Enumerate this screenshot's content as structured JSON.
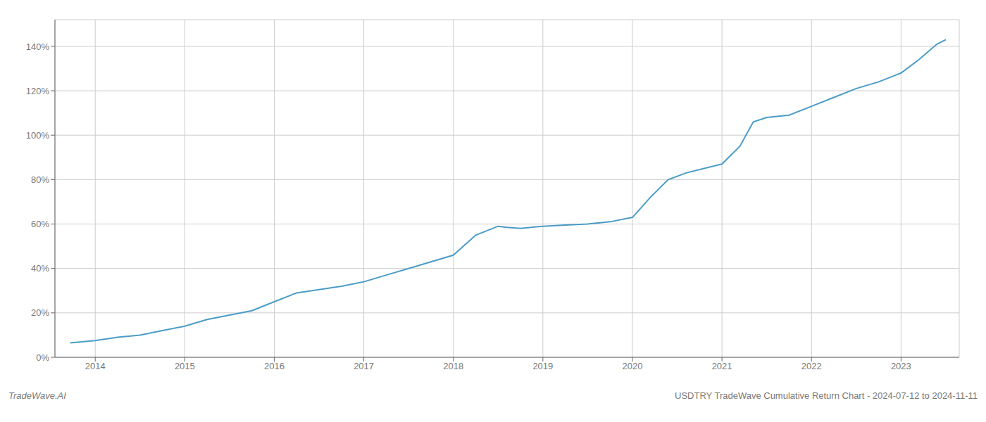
{
  "chart_data": {
    "type": "line",
    "title": "USDTRY TradeWave Cumulative Return Chart - 2024-07-12 to 2024-11-11",
    "annotations": [
      "TradeWave.AI"
    ],
    "color": "#4a9cc7",
    "grid": true,
    "x": [
      2013.72,
      2014,
      2014.25,
      2014.5,
      2014.75,
      2015,
      2015.25,
      2015.5,
      2015.75,
      2016,
      2016.25,
      2016.5,
      2016.75,
      2017,
      2017.25,
      2017.5,
      2017.75,
      2018,
      2018.25,
      2018.5,
      2018.6,
      2018.75,
      2019,
      2019.25,
      2019.5,
      2019.75,
      2020,
      2020.2,
      2020.4,
      2020.6,
      2020.8,
      2021,
      2021.2,
      2021.35,
      2021.5,
      2021.75,
      2022,
      2022.25,
      2022.5,
      2022.75,
      2023,
      2023.2,
      2023.4,
      2023.5
    ],
    "values": [
      6.5,
      7.5,
      9,
      10,
      12,
      14,
      17,
      19,
      21,
      25,
      29,
      30.5,
      32,
      34,
      37,
      40,
      43,
      46,
      55,
      59,
      58.5,
      58,
      59,
      59.5,
      60,
      61,
      63,
      72,
      80,
      83,
      85,
      87,
      95,
      106,
      108,
      109,
      113,
      117,
      121,
      124,
      128,
      134,
      141,
      143
    ],
    "xlim": [
      2013.55,
      2023.65
    ],
    "xticks": [
      2014,
      2015,
      2016,
      2017,
      2018,
      2019,
      2020,
      2021,
      2022,
      2023
    ],
    "ylim": [
      0,
      152
    ],
    "yticks": [
      {
        "value": 0,
        "label": "0%"
      },
      {
        "value": 20,
        "label": "20%"
      },
      {
        "value": 40,
        "label": "40%"
      },
      {
        "value": 60,
        "label": "60%"
      },
      {
        "value": 80,
        "label": "80%"
      },
      {
        "value": 100,
        "label": "100%"
      },
      {
        "value": 120,
        "label": "120%"
      },
      {
        "value": 140,
        "label": "140%"
      }
    ]
  }
}
